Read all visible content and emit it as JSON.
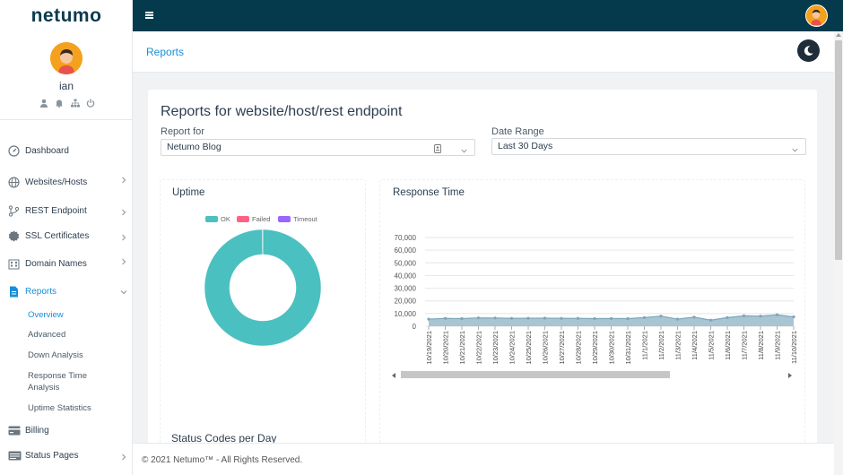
{
  "app": {
    "logo": "netumo"
  },
  "user": {
    "name": "ian"
  },
  "sidebar": {
    "items": [
      {
        "label": "Dashboard",
        "icon": "dashboard-icon",
        "chevron": false
      },
      {
        "label": "Websites/Hosts",
        "icon": "globe-icon",
        "chevron": true
      },
      {
        "label": "REST Endpoint",
        "icon": "branch-icon",
        "chevron": true
      },
      {
        "label": "SSL Certificates",
        "icon": "certificate-icon",
        "chevron": true
      },
      {
        "label": "Domain Names",
        "icon": "building-icon",
        "chevron": true
      },
      {
        "label": "Reports",
        "icon": "document-icon",
        "chevron": true,
        "active": true
      },
      {
        "label": "Billing",
        "icon": "billing-icon",
        "chevron": false
      },
      {
        "label": "Status Pages",
        "icon": "status-page-icon",
        "chevron": true
      }
    ],
    "reports_submenu": [
      {
        "label": "Overview",
        "active": true
      },
      {
        "label": "Advanced"
      },
      {
        "label": "Down Analysis"
      },
      {
        "label": "Response Time Analysis"
      },
      {
        "label": "Uptime Statistics"
      }
    ]
  },
  "header": {
    "breadcrumb": "Reports"
  },
  "page": {
    "title": "Reports for website/host/rest endpoint",
    "report_for_label": "Report for",
    "report_for_value": "Netumo Blog",
    "date_range_label": "Date Range",
    "date_range_value": "Last 30 Days",
    "uptime_title": "Uptime",
    "response_title": "Response Time",
    "status_codes_title": "Status Codes per Day"
  },
  "footer": {
    "text": "© 2021 Netumo™ - All Rights Reserved."
  },
  "colors": {
    "accent": "#1a8fd6",
    "topbar": "#053a4d",
    "ok": "#4bc0c0",
    "failed": "#ff6384",
    "timeout": "#9966ff"
  },
  "chart_data": [
    {
      "type": "pie",
      "title": "Uptime",
      "categories": [
        "OK",
        "Failed",
        "Timeout"
      ],
      "values": [
        99.9,
        0.1,
        0
      ],
      "legend": "top"
    },
    {
      "type": "area",
      "title": "Response Time",
      "x": [
        "10/19/2021",
        "10/20/2021",
        "10/21/2021",
        "10/22/2021",
        "10/23/2021",
        "10/24/2021",
        "10/25/2021",
        "10/26/2021",
        "10/27/2021",
        "10/28/2021",
        "10/29/2021",
        "10/30/2021",
        "10/31/2021",
        "11/1/2021",
        "11/2/2021",
        "11/3/2021",
        "11/4/2021",
        "11/5/2021",
        "11/6/2021",
        "11/7/2021",
        "11/8/2021",
        "11/9/2021",
        "11/10/2021"
      ],
      "values": [
        5600,
        6200,
        6000,
        6600,
        6500,
        6200,
        6300,
        6400,
        6200,
        6200,
        6000,
        6100,
        6000,
        6800,
        8000,
        5600,
        7200,
        4800,
        6800,
        8200,
        8000,
        9000,
        7400
      ],
      "yticks": [
        "0",
        "10,000",
        "20,000",
        "30,000",
        "40,000",
        "50,000",
        "60,000",
        "70,000"
      ],
      "ylim": [
        0,
        70000
      ],
      "grid": true
    }
  ]
}
